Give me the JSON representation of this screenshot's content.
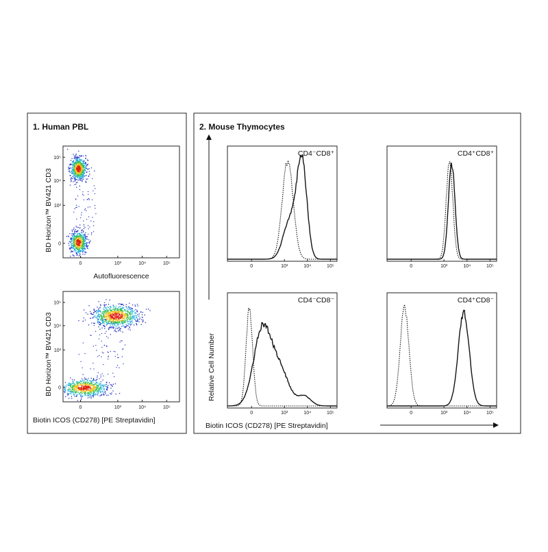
{
  "panel1": {
    "title": "1. Human PBL",
    "plots": [
      {
        "y_label": "BD Horizon™ BV421 CD3",
        "x_label": "Autofluorescence",
        "x_ticks": [
          "0",
          "10³",
          "10⁴",
          "10⁵"
        ],
        "y_ticks": [
          "0",
          "10³",
          "10⁴",
          "10⁵"
        ]
      },
      {
        "y_label": "BD Horizon™ BV421 CD3",
        "x_label": "Biotin ICOS (CD278) [PE Streptavidin]",
        "x_ticks": [
          "0",
          "10³",
          "10⁴",
          "10⁵"
        ],
        "y_ticks": [
          "0",
          "10³",
          "10⁴",
          "10⁵"
        ]
      }
    ]
  },
  "panel2": {
    "title": "2. Mouse Thymocytes",
    "y_label": "Relative Cell Number",
    "x_label": "Biotin ICOS (CD278) [PE Streptavidin]",
    "histograms": [
      {
        "label": "CD4⁻CD8⁺",
        "x_ticks": [
          "0",
          "10³",
          "10⁴",
          "10⁵"
        ]
      },
      {
        "label": "CD4⁺CD8⁺",
        "x_ticks": [
          "0",
          "10³",
          "10⁴",
          "10⁵"
        ]
      },
      {
        "label": "CD4⁻CD8⁻",
        "x_ticks": [
          "0",
          "10³",
          "10⁴",
          "10⁵"
        ]
      },
      {
        "label": "CD4⁺CD8⁻",
        "x_ticks": [
          "0",
          "10³",
          "10⁴",
          "10⁵"
        ]
      }
    ]
  }
}
